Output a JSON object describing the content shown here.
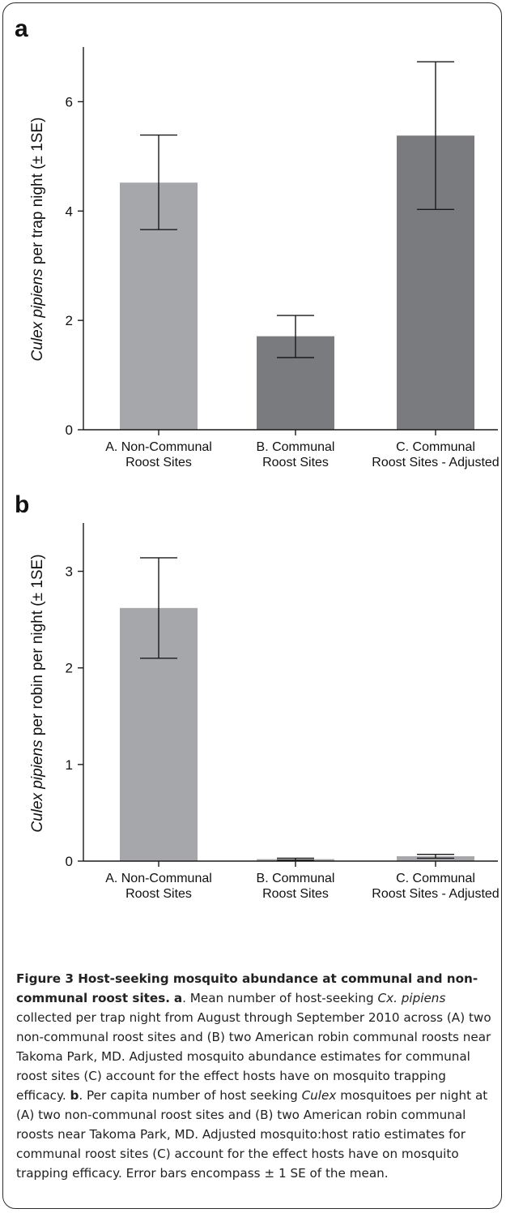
{
  "chart_data": [
    {
      "panel": "a",
      "type": "bar",
      "categories": [
        [
          "A. Non-Communal",
          "Roost Sites"
        ],
        [
          "B. Communal",
          "Roost Sites"
        ],
        [
          "C. Communal",
          "Roost Sites - Adjusted"
        ]
      ],
      "values": [
        4.52,
        1.71,
        5.38
      ],
      "errors": [
        [
          3.66,
          5.39
        ],
        [
          1.32,
          2.09
        ],
        [
          4.03,
          6.73
        ]
      ],
      "bar_colors": [
        "#a6a7aa",
        "#7a7b7e",
        "#7a7b7e"
      ],
      "ylabel_italic": "Culex pipiens",
      "ylabel_rest": " per trap night (± 1SE)",
      "ylim": [
        0,
        7
      ],
      "yticks": [
        0,
        2,
        4,
        6
      ]
    },
    {
      "panel": "b",
      "type": "bar",
      "categories": [
        [
          "A. Non-Communal",
          "Roost Sites"
        ],
        [
          "B. Communal",
          "Roost Sites"
        ],
        [
          "C. Communal",
          "Roost Sites - Adjusted"
        ]
      ],
      "values": [
        2.62,
        0.02,
        0.05
      ],
      "errors": [
        [
          2.1,
          3.14
        ],
        [
          0.01,
          0.03
        ],
        [
          0.03,
          0.07
        ]
      ],
      "bar_colors": [
        "#a6a7aa",
        "#a6a7aa",
        "#a6a7aa"
      ],
      "ylabel_italic": "Culex pipiens",
      "ylabel_rest": " per robin per night (± 1SE)",
      "ylim": [
        0,
        3.5
      ],
      "yticks": [
        0,
        1,
        2,
        3
      ]
    }
  ],
  "caption": {
    "title": "Figure 3 Host-seeking mosquito abundance at communal and non-communal roost sites.",
    "a_label": "a",
    "a_text_1": ". Mean number of host-seeking ",
    "a_italic_1": "Cx. pipiens",
    "a_text_2": " collected per trap night from August through September 2010 across (A) two non-communal roost sites and (B) two American robin communal roosts near Takoma Park, MD. Adjusted mosquito abundance estimates for communal roost sites (C) account for the effect hosts have on mosquito trapping efficacy. ",
    "b_label": "b",
    "b_text_1": ". Per capita number of host seeking ",
    "b_italic_1": "Culex",
    "b_text_2": " mosquitoes per night at (A) two non-communal roost sites and (B) two American robin communal roosts near Takoma Park, MD. Adjusted mosquito:host ratio estimates for communal roost sites (C) account for the effect hosts have on mosquito trapping efficacy. Error bars encompass ± 1 SE of the mean."
  }
}
